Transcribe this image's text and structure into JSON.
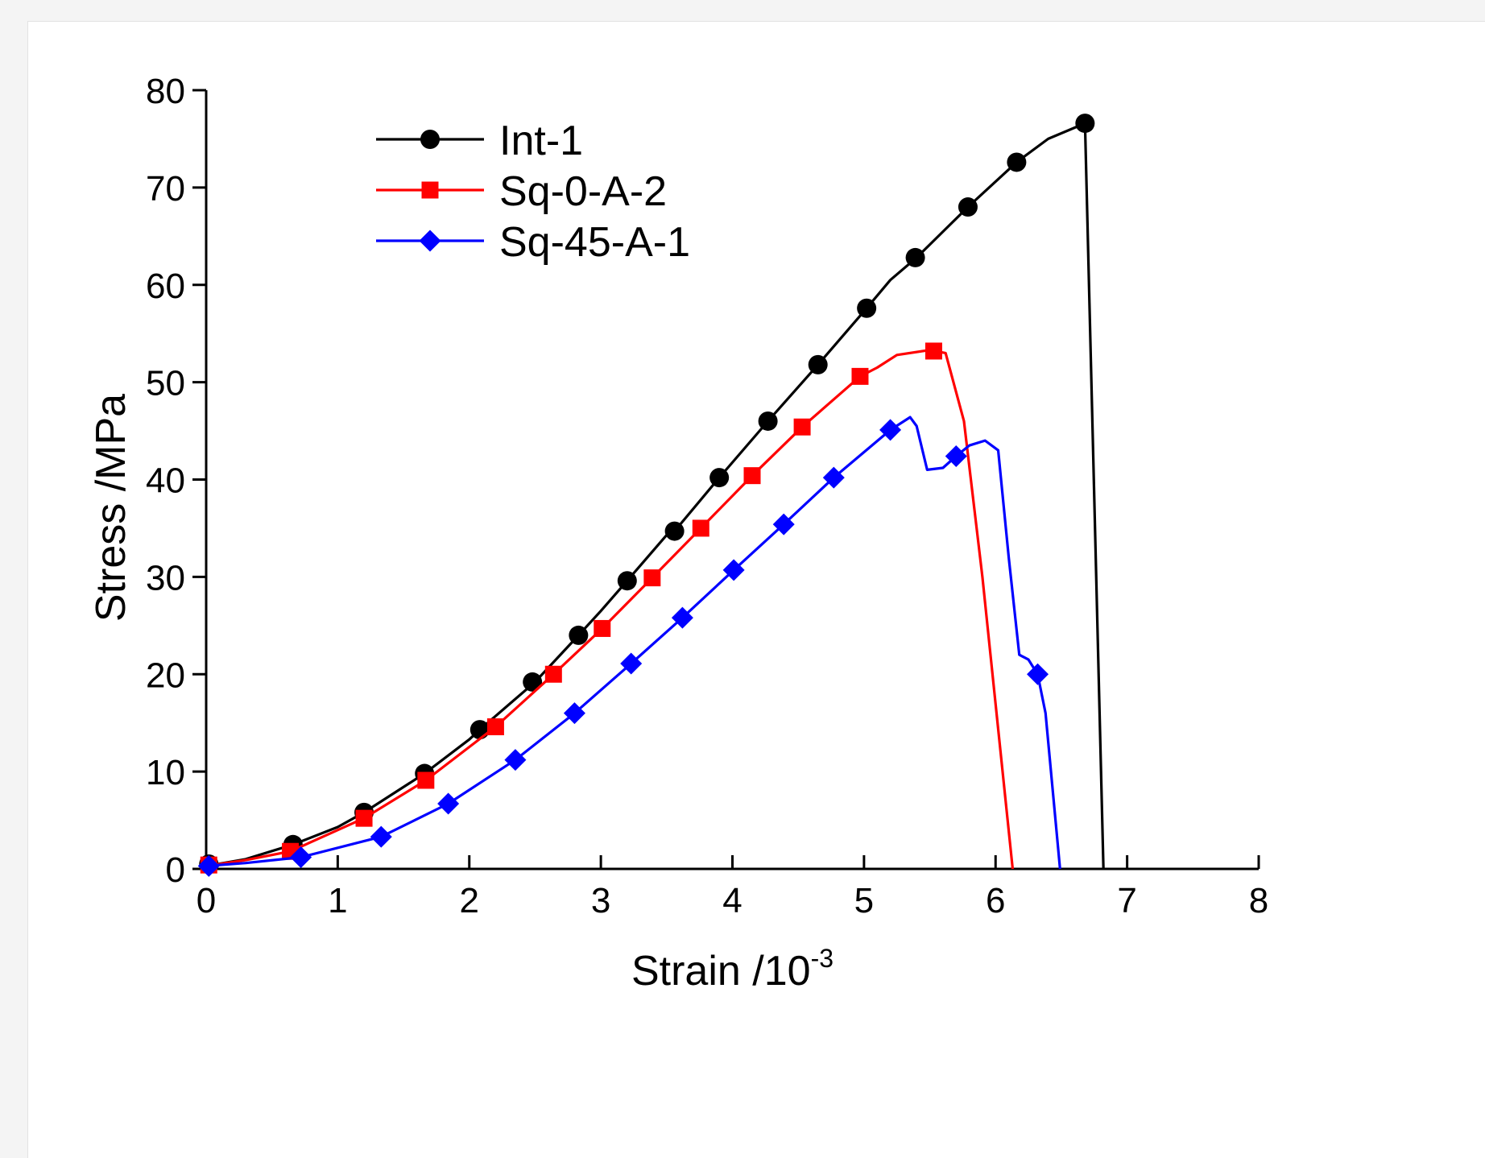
{
  "chart_data": {
    "type": "line",
    "title": "",
    "xlabel": "Strain /10",
    "xlabel_exp": "-3",
    "ylabel": "Stress /MPa",
    "xlim": [
      0,
      8
    ],
    "ylim": [
      0,
      80
    ],
    "xticks": [
      "0",
      "1",
      "2",
      "3",
      "4",
      "5",
      "6",
      "7",
      "8"
    ],
    "yticks": [
      "0",
      "10",
      "20",
      "30",
      "40",
      "50",
      "60",
      "70",
      "80"
    ],
    "grid": false,
    "legend_position": "top-left",
    "series": [
      {
        "name": "Int-1",
        "color": "#000000",
        "marker": "circle",
        "line": [
          [
            0,
            0.3
          ],
          [
            0.3,
            1
          ],
          [
            0.66,
            2.5
          ],
          [
            1,
            4.3
          ],
          [
            1.2,
            5.8
          ],
          [
            1.66,
            9.8
          ],
          [
            2,
            13.3
          ],
          [
            2.08,
            14.3
          ],
          [
            2.5,
            19.2
          ],
          [
            2.83,
            24
          ],
          [
            3,
            26.5
          ],
          [
            3.2,
            29.6
          ],
          [
            3.5,
            34.3
          ],
          [
            3.56,
            34.7
          ],
          [
            3.9,
            40.2
          ],
          [
            4.27,
            46
          ],
          [
            4.65,
            51.8
          ],
          [
            5.02,
            57.6
          ],
          [
            5.2,
            60.5
          ],
          [
            5.4,
            62.8
          ],
          [
            5.79,
            68
          ],
          [
            6.16,
            72.6
          ],
          [
            6.4,
            75
          ],
          [
            6.68,
            76.6
          ],
          [
            6.82,
            0
          ]
        ],
        "markers": [
          [
            0.02,
            0.5
          ],
          [
            0.66,
            2.5
          ],
          [
            1.2,
            5.8
          ],
          [
            1.66,
            9.8
          ],
          [
            2.08,
            14.3
          ],
          [
            2.48,
            19.2
          ],
          [
            2.83,
            24
          ],
          [
            3.2,
            29.6
          ],
          [
            3.56,
            34.7
          ],
          [
            3.9,
            40.2
          ],
          [
            4.27,
            46
          ],
          [
            4.65,
            51.8
          ],
          [
            5.02,
            57.6
          ],
          [
            5.39,
            62.8
          ],
          [
            5.79,
            68
          ],
          [
            6.16,
            72.6
          ],
          [
            6.68,
            76.6
          ]
        ]
      },
      {
        "name": "Sq-0-A-2",
        "color": "#ff0000",
        "marker": "square",
        "line": [
          [
            0,
            0.3
          ],
          [
            0.3,
            0.9
          ],
          [
            0.64,
            1.8
          ],
          [
            1.2,
            5.2
          ],
          [
            1.67,
            9.1
          ],
          [
            2.2,
            14.6
          ],
          [
            2.64,
            20
          ],
          [
            3.01,
            24.7
          ],
          [
            3.39,
            29.9
          ],
          [
            3.76,
            35
          ],
          [
            4.15,
            40.4
          ],
          [
            4.53,
            45.4
          ],
          [
            4.97,
            50.6
          ],
          [
            5.1,
            51.5
          ],
          [
            5.25,
            52.8
          ],
          [
            5.5,
            53.3
          ],
          [
            5.62,
            53
          ],
          [
            5.76,
            46
          ],
          [
            5.9,
            30
          ],
          [
            6.13,
            0
          ]
        ],
        "markers": [
          [
            0.02,
            0.4
          ],
          [
            0.64,
            1.8
          ],
          [
            1.2,
            5.2
          ],
          [
            1.67,
            9.1
          ],
          [
            2.2,
            14.6
          ],
          [
            2.64,
            20
          ],
          [
            3.01,
            24.7
          ],
          [
            3.39,
            29.9
          ],
          [
            3.76,
            35
          ],
          [
            4.15,
            40.4
          ],
          [
            4.53,
            45.4
          ],
          [
            4.97,
            50.6
          ],
          [
            5.53,
            53.2
          ]
        ]
      },
      {
        "name": "Sq-45-A-1",
        "color": "#0000ff",
        "marker": "diamond",
        "line": [
          [
            0,
            0.3
          ],
          [
            0.3,
            0.6
          ],
          [
            0.72,
            1.2
          ],
          [
            1.33,
            3.3
          ],
          [
            1.84,
            6.7
          ],
          [
            2.35,
            11.2
          ],
          [
            2.8,
            16
          ],
          [
            3.23,
            21.1
          ],
          [
            3.62,
            25.8
          ],
          [
            4.01,
            30.7
          ],
          [
            4.39,
            35.4
          ],
          [
            4.77,
            40.2
          ],
          [
            5.2,
            45.1
          ],
          [
            5.35,
            46.4
          ],
          [
            5.4,
            45.5
          ],
          [
            5.48,
            41
          ],
          [
            5.6,
            41.2
          ],
          [
            5.7,
            42.4
          ],
          [
            5.8,
            43.5
          ],
          [
            5.92,
            44
          ],
          [
            6.02,
            43
          ],
          [
            6.1,
            32
          ],
          [
            6.18,
            22
          ],
          [
            6.25,
            21.5
          ],
          [
            6.32,
            20
          ],
          [
            6.38,
            16
          ],
          [
            6.49,
            0
          ]
        ],
        "markers": [
          [
            0.02,
            0.3
          ],
          [
            0.72,
            1.2
          ],
          [
            1.33,
            3.3
          ],
          [
            1.84,
            6.7
          ],
          [
            2.35,
            11.2
          ],
          [
            2.8,
            16
          ],
          [
            3.23,
            21.1
          ],
          [
            3.62,
            25.8
          ],
          [
            4.01,
            30.7
          ],
          [
            4.39,
            35.4
          ],
          [
            4.77,
            40.2
          ],
          [
            5.2,
            45.1
          ],
          [
            5.7,
            42.4
          ],
          [
            6.32,
            20
          ]
        ]
      }
    ]
  }
}
